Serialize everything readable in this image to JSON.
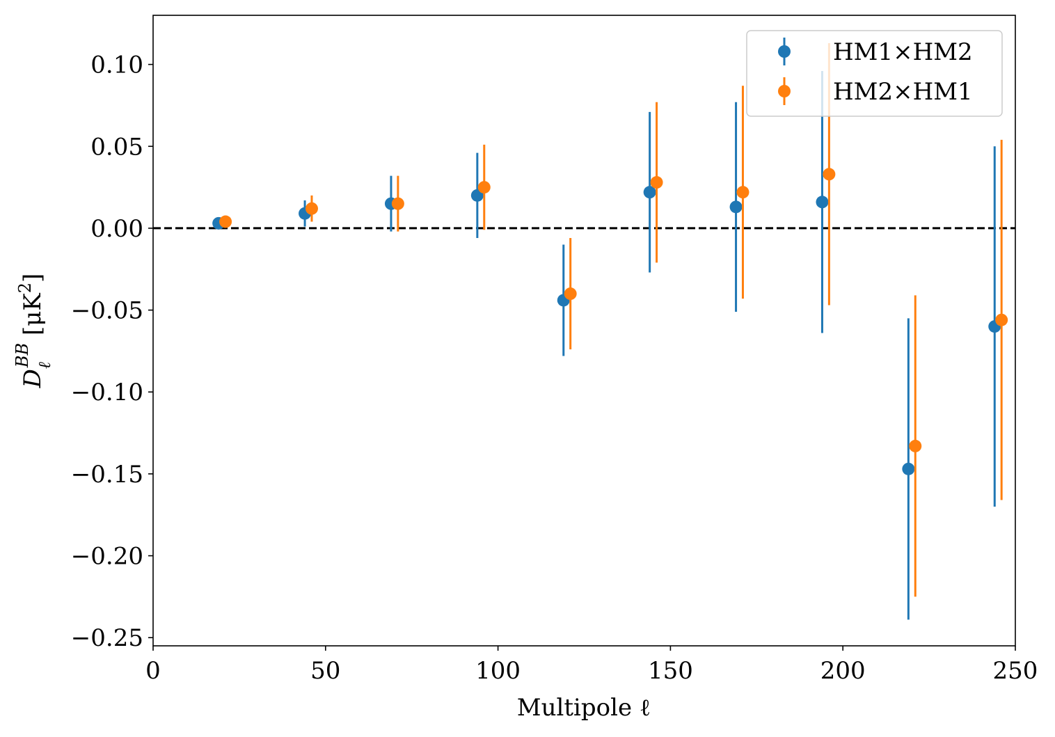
{
  "chart_data": {
    "type": "scatter",
    "xlabel": "Multipole ℓ",
    "ylabel": "D_ℓ^BB [μK²]",
    "xlim": [
      0,
      250
    ],
    "ylim": [
      -0.255,
      0.13
    ],
    "x_ticks": [
      {
        "value": 0,
        "label": "0"
      },
      {
        "value": 50,
        "label": "50"
      },
      {
        "value": 100,
        "label": "100"
      },
      {
        "value": 150,
        "label": "150"
      },
      {
        "value": 200,
        "label": "200"
      },
      {
        "value": 250,
        "label": "250"
      }
    ],
    "y_ticks": [
      {
        "value": 0.1,
        "label": "0.10"
      },
      {
        "value": 0.05,
        "label": "0.05"
      },
      {
        "value": 0.0,
        "label": "0.00"
      },
      {
        "value": -0.05,
        "label": "−0.05"
      },
      {
        "value": -0.1,
        "label": "−0.10"
      },
      {
        "value": -0.15,
        "label": "−0.15"
      },
      {
        "value": -0.2,
        "label": "−0.20"
      },
      {
        "value": -0.25,
        "label": "−0.25"
      }
    ],
    "reference_line": {
      "y": 0,
      "style": "dashed",
      "color": "#000000"
    },
    "grid": false,
    "legend_position": "top-right",
    "series": [
      {
        "name": "HM1×HM2",
        "color": "#1f77b4",
        "x": [
          19,
          44,
          69,
          94,
          119,
          144,
          169,
          194,
          219,
          244
        ],
        "y": [
          0.003,
          0.009,
          0.015,
          0.02,
          -0.044,
          0.022,
          0.013,
          0.016,
          -0.147,
          -0.06
        ],
        "err": [
          0.003,
          0.008,
          0.017,
          0.026,
          0.034,
          0.049,
          0.064,
          0.08,
          0.092,
          0.11
        ]
      },
      {
        "name": "HM2×HM1",
        "color": "#ff7f0e",
        "x": [
          21,
          46,
          71,
          96,
          121,
          146,
          171,
          196,
          221,
          246
        ],
        "y": [
          0.004,
          0.012,
          0.015,
          0.025,
          -0.04,
          0.028,
          0.022,
          0.033,
          -0.133,
          -0.056
        ],
        "err": [
          0.003,
          0.008,
          0.017,
          0.026,
          0.034,
          0.049,
          0.065,
          0.08,
          0.092,
          0.11
        ]
      }
    ]
  }
}
